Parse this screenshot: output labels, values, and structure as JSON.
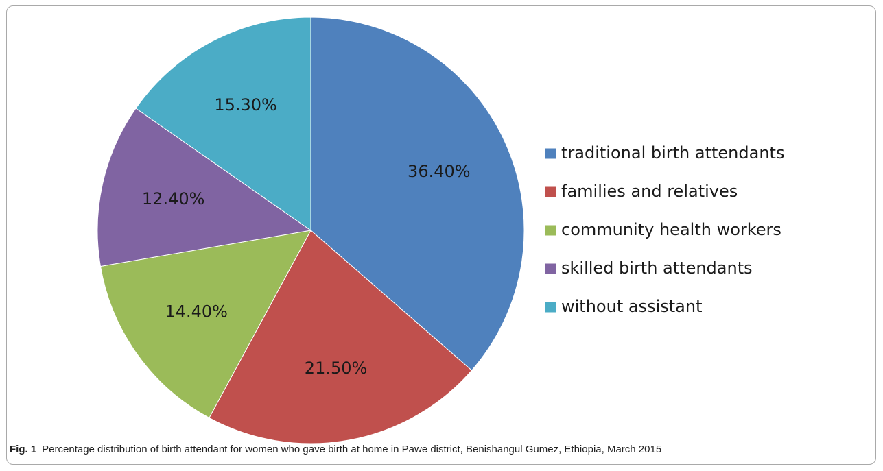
{
  "caption": {
    "label": "Fig. 1",
    "text": "Percentage distribution of birth attendant for women who gave birth at home in Pawe district, Benishangul Gumez, Ethiopia, March 2015"
  },
  "chart_data": {
    "type": "pie",
    "title": "",
    "start_angle_deg": 0,
    "direction": "clockwise",
    "legend_position": "right",
    "slices": [
      {
        "label": "traditional birth attendants",
        "value": 36.4,
        "display": "36.40%",
        "color": "#4F81BD"
      },
      {
        "label": "families and relatives",
        "value": 21.5,
        "display": "21.50%",
        "color": "#C0504D"
      },
      {
        "label": "community health workers",
        "value": 14.4,
        "display": "14.40%",
        "color": "#9BBB59"
      },
      {
        "label": "skilled birth attendants",
        "value": 12.4,
        "display": "12.40%",
        "color": "#8064A2"
      },
      {
        "label": "without assistant",
        "value": 15.3,
        "display": "15.30%",
        "color": "#4BACC6"
      }
    ]
  }
}
